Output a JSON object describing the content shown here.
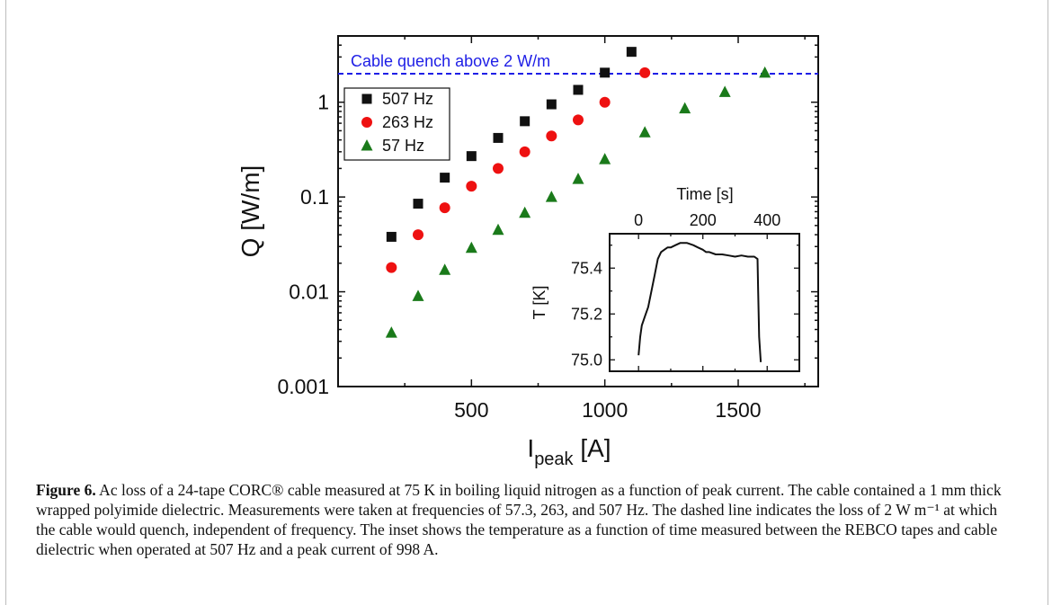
{
  "chart_data": [
    {
      "type": "scatter",
      "yscale": "log",
      "xlabel_main": "I",
      "xlabel_sub": "peak",
      "xlabel_unit": "[A]",
      "ylabel": "Q [W/m]",
      "xlim": [
        0,
        1800
      ],
      "ylim": [
        0.001,
        5
      ],
      "xticks": [
        500,
        1000,
        1500
      ],
      "yticks": [
        0.001,
        0.01,
        0.1,
        1
      ],
      "ytick_labels": [
        "0.001",
        "0.01",
        "0.1",
        "1"
      ],
      "legend_position": "top-left",
      "series": [
        {
          "name": "507 Hz",
          "marker": "square",
          "color": "#111111",
          "x": [
            200,
            300,
            400,
            500,
            600,
            700,
            800,
            900,
            1000,
            1100
          ],
          "y": [
            0.038,
            0.085,
            0.16,
            0.27,
            0.42,
            0.63,
            0.95,
            1.35,
            2.05,
            3.4
          ]
        },
        {
          "name": "263 Hz",
          "marker": "circle",
          "color": "#ee1111",
          "x": [
            200,
            300,
            400,
            500,
            600,
            700,
            800,
            900,
            1000,
            1150
          ],
          "y": [
            0.018,
            0.04,
            0.077,
            0.13,
            0.2,
            0.3,
            0.44,
            0.65,
            1.0,
            2.05
          ]
        },
        {
          "name": "57 Hz",
          "marker": "triangle",
          "color": "#1a7a1a",
          "x": [
            200,
            300,
            400,
            500,
            600,
            700,
            800,
            900,
            1000,
            1150,
            1300,
            1450,
            1600
          ],
          "y": [
            0.0037,
            0.009,
            0.017,
            0.029,
            0.045,
            0.068,
            0.1,
            0.155,
            0.25,
            0.48,
            0.86,
            1.28,
            2.05
          ]
        }
      ],
      "reference_line": {
        "y": 2,
        "label": "Cable quench above 2 W/m",
        "color": "#1e1ee6"
      }
    },
    {
      "type": "line",
      "role": "inset",
      "xlabel": "Time [s]",
      "ylabel": "T [K]",
      "xlim": [
        -90,
        500
      ],
      "ylim": [
        74.95,
        75.55
      ],
      "xticks": [
        0,
        200,
        400
      ],
      "yticks": [
        75.0,
        75.2,
        75.4
      ],
      "ytick_labels": [
        "75.0",
        "75.2",
        "75.4"
      ],
      "series": [
        {
          "x": [
            0,
            5,
            10,
            20,
            30,
            40,
            50,
            60,
            70,
            80,
            90,
            100,
            115,
            130,
            150,
            170,
            185,
            200,
            210,
            220,
            240,
            260,
            280,
            300,
            320,
            340,
            360,
            370,
            372,
            375,
            380
          ],
          "y": [
            75.02,
            75.1,
            75.15,
            75.19,
            75.23,
            75.3,
            75.37,
            75.44,
            75.47,
            75.48,
            75.49,
            75.49,
            75.5,
            75.51,
            75.51,
            75.5,
            75.49,
            75.48,
            75.47,
            75.47,
            75.46,
            75.46,
            75.455,
            75.45,
            75.455,
            75.45,
            75.45,
            75.44,
            75.3,
            75.1,
            74.99
          ]
        }
      ]
    }
  ],
  "caption": {
    "label": "Figure 6.",
    "text": " Ac loss of a 24-tape CORC® cable measured at 75 K in boiling liquid nitrogen as a function of peak current. The cable contained a 1 mm thick wrapped polyimide dielectric. Measurements were taken at frequencies of 57.3, 263, and 507 Hz. The dashed line indicates the loss of 2 W m⁻¹ at which the cable would quench, independent of frequency. The inset shows the temperature as a function of time measured between the REBCO tapes and cable dielectric when operated at 507 Hz and a peak current of 998 A."
  }
}
